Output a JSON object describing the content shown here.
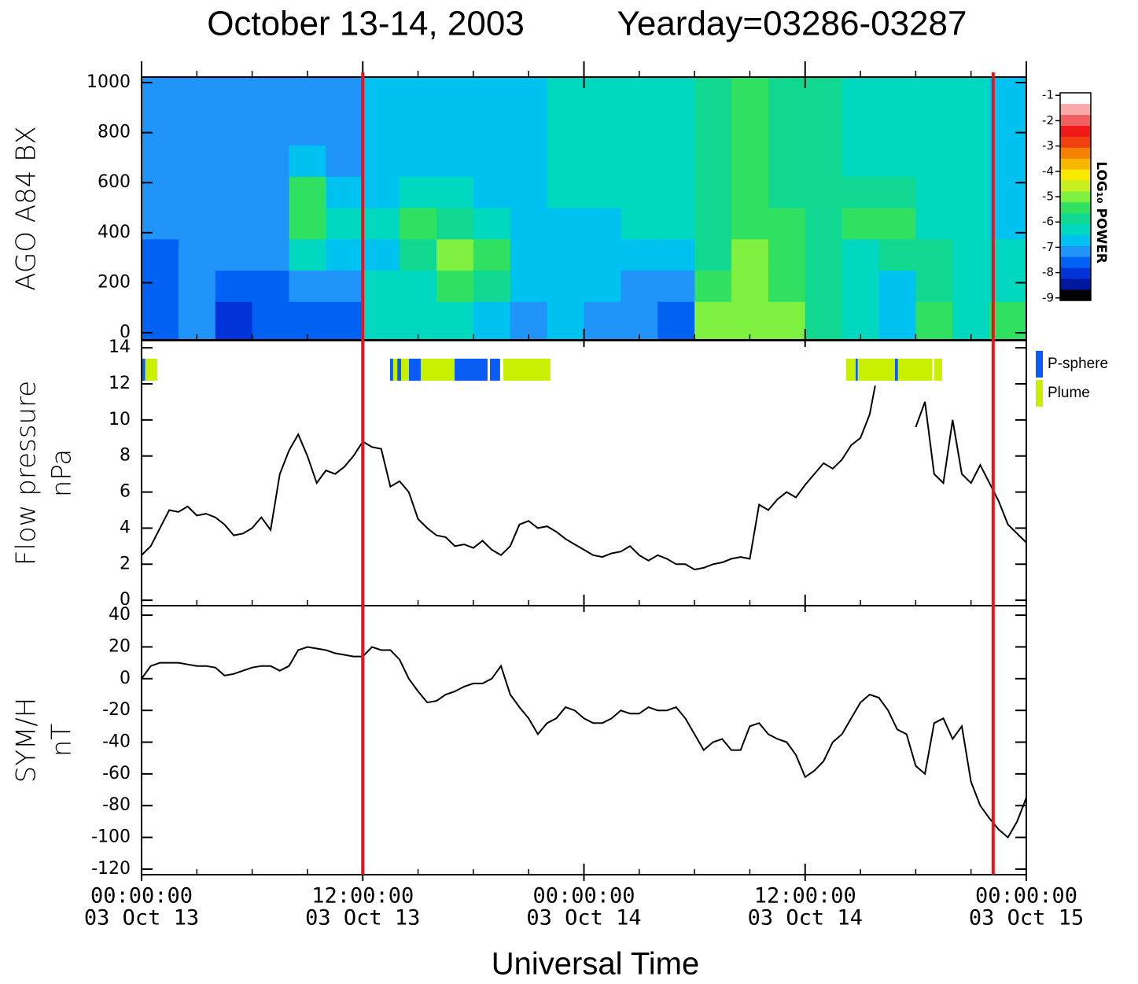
{
  "chart_data": [
    {
      "type": "heatmap",
      "title": "October 13-14, 2003",
      "subtitle": "Yearday=03286-03287",
      "ylabel": [
        "AGO A84  BX"
      ],
      "xlim": [
        0,
        48
      ],
      "ylim": [
        -28,
        1022
      ],
      "yticks": [
        0,
        200,
        400,
        600,
        800,
        1000
      ],
      "x_bins": [
        0,
        2,
        4,
        6,
        8,
        10,
        12,
        14,
        16,
        18,
        20,
        22,
        24,
        26,
        28,
        30,
        32,
        34,
        36,
        38,
        40,
        42,
        44,
        46,
        48
      ],
      "y_bins": [
        -28,
        125,
        250,
        375,
        500,
        625,
        750,
        875,
        1022
      ],
      "z": [
        [
          -7.8,
          -7.5,
          -7.4,
          -7.3,
          -7.3,
          -7.3,
          -7.3,
          -7.3
        ],
        [
          -7.3,
          -7.2,
          -7.2,
          -7.2,
          -7.2,
          -7.2,
          -7.2,
          -7.2
        ],
        [
          -8,
          -7.6,
          -7.3,
          -7.2,
          -7.2,
          -7.2,
          -7.2,
          -7.2
        ],
        [
          -7.8,
          -7.6,
          -7.3,
          -7.2,
          -7.2,
          -7.2,
          -7.2,
          -7.2
        ],
        [
          -7.6,
          -7.3,
          -6.5,
          -5.6,
          -5.6,
          -6.8,
          -7.1,
          -7.2
        ],
        [
          -7.4,
          -7,
          -6.8,
          -6.2,
          -6.8,
          -7,
          -7.1,
          -7.1
        ],
        [
          -6.2,
          -6.5,
          -6.6,
          -6.2,
          -6.6,
          -6.8,
          -6.8,
          -6.8
        ],
        [
          -6.3,
          -6.4,
          -5.8,
          -5.3,
          -6.5,
          -6.6,
          -6.6,
          -6.6
        ],
        [
          -6.5,
          -5.5,
          -5,
          -6,
          -6.5,
          -6.6,
          -6.6,
          -6.6
        ],
        [
          -6.8,
          -5.8,
          -5.6,
          -6.3,
          -6.6,
          -6.6,
          -6.6,
          -6.6
        ],
        [
          -7.2,
          -6.9,
          -6.7,
          -6.6,
          -6.6,
          -6.6,
          -6.6,
          -6.6
        ],
        [
          -6.8,
          -6.8,
          -6.7,
          -6.6,
          -6.5,
          -6.5,
          -6.5,
          -6.5
        ],
        [
          -7.1,
          -6.9,
          -6.8,
          -6.6,
          -6.5,
          -6.5,
          -6.5,
          -6.5
        ],
        [
          -7.2,
          -7,
          -6.8,
          -6.5,
          -6.3,
          -6.3,
          -6.3,
          -6.3
        ],
        [
          -7.4,
          -7.1,
          -6.8,
          -6.4,
          -6.2,
          -6.2,
          -6.2,
          -6.2
        ],
        [
          -5.2,
          -5.4,
          -5.8,
          -5.8,
          -5.8,
          -5.9,
          -5.9,
          -6
        ],
        [
          -4.8,
          -5,
          -5.2,
          -5.3,
          -5.3,
          -5.3,
          -5.3,
          -5.4
        ],
        [
          -5.2,
          -5.3,
          -5.5,
          -5.6,
          -5.7,
          -5.8,
          -5.8,
          -5.8
        ],
        [
          -5.8,
          -6,
          -5.9,
          -5.9,
          -5.9,
          -6,
          -6,
          -6
        ],
        [
          -6.2,
          -6.5,
          -6.2,
          -5.6,
          -6,
          -6.2,
          -6.2,
          -6.2
        ],
        [
          -6.6,
          -6.7,
          -5.8,
          -5.3,
          -6,
          -6.2,
          -6.2,
          -6.2
        ],
        [
          -5.5,
          -5.9,
          -6,
          -6.2,
          -6.3,
          -6.3,
          -6.3,
          -6.3
        ],
        [
          -6.3,
          -6.5,
          -6.5,
          -6.4,
          -6.4,
          -6.4,
          -6.4,
          -6.4
        ],
        [
          -5.5,
          -6.2,
          -6.5,
          -6.6,
          -6.6,
          -6.6,
          -6.6,
          -6.6
        ]
      ],
      "zlim": [
        -9.1,
        -0.9
      ],
      "zticks": [
        -1,
        -2,
        -3,
        -4,
        -5,
        -6,
        -7,
        -8,
        -9
      ],
      "zlabel": "LOG₁₀ POWER",
      "colorscale": [
        "#000000",
        "#0018a0",
        "#0034d8",
        "#0062f2",
        "#2094f8",
        "#00c2f0",
        "#00d8c0",
        "#10d890",
        "#30e060",
        "#80f040",
        "#c8f020",
        "#f8e800",
        "#f8b800",
        "#f88000",
        "#f04010",
        "#f01818",
        "#f06060",
        "#f8a8a8",
        "#ffffff"
      ],
      "markers": [
        12.0,
        46.2
      ],
      "marker_color": "#e8141c"
    },
    {
      "type": "line",
      "ylabel": [
        "Flow pressure",
        "nPa"
      ],
      "color": "#000000",
      "xlim": [
        0,
        48
      ],
      "ylim": [
        -0.3,
        14.4
      ],
      "yticks": [
        0,
        2,
        4,
        6,
        8,
        10,
        12,
        14
      ],
      "x": [
        0,
        0.5,
        1,
        1.5,
        2,
        2.5,
        3,
        3.5,
        4,
        4.5,
        5,
        5.5,
        6,
        6.5,
        7,
        7.5,
        8,
        8.5,
        9,
        9.5,
        10,
        10.5,
        11,
        11.5,
        12,
        12.5,
        13,
        13.5,
        14,
        14.5,
        15,
        15.5,
        16,
        16.5,
        17,
        17.5,
        18,
        18.5,
        19,
        19.5,
        20,
        20.5,
        21,
        21.5,
        22,
        22.5,
        23,
        23.5,
        24,
        24.5,
        25,
        25.5,
        26,
        26.5,
        27,
        27.5,
        28,
        28.5,
        29,
        29.5,
        30,
        30.5,
        31,
        31.5,
        32,
        32.5,
        33,
        33.5,
        34,
        34.5,
        35,
        35.5,
        36,
        36.5,
        37,
        37.5,
        38,
        38.5,
        39,
        39.5,
        39.8,
        40.5,
        42,
        42.5,
        43,
        43.5,
        44,
        44.5,
        45,
        45.5,
        46,
        46.5,
        47,
        47.5,
        48
      ],
      "values": [
        2.5,
        3,
        4,
        5,
        4.9,
        5.2,
        4.7,
        4.8,
        4.6,
        4.2,
        3.6,
        3.7,
        4,
        4.6,
        3.9,
        7,
        8.3,
        9.2,
        8,
        6.5,
        7.2,
        7,
        7.4,
        8,
        8.8,
        8.5,
        8.4,
        6.3,
        6.6,
        6,
        4.5,
        4,
        3.6,
        3.5,
        3,
        3.1,
        2.9,
        3.3,
        2.8,
        2.5,
        3,
        4.2,
        4.4,
        4,
        4.1,
        3.8,
        3.4,
        3.1,
        2.8,
        2.5,
        2.4,
        2.6,
        2.7,
        3,
        2.5,
        2.2,
        2.5,
        2.3,
        2,
        2,
        1.7,
        1.8,
        2,
        2.1,
        2.3,
        2.4,
        2.3,
        5.3,
        5,
        5.6,
        6,
        5.7,
        6.4,
        7,
        7.6,
        7.3,
        7.8,
        8.6,
        9,
        10.3,
        11.9,
        null,
        9.6,
        11,
        7,
        6.5,
        10,
        7,
        6.5,
        7.5,
        6.5,
        5.5,
        4.2,
        3.7,
        3.2
      ],
      "regions": [
        {
          "name": "P-sphere",
          "color": "#0a5cf5",
          "intervals": [
            [
              0,
              0.2
            ],
            [
              13.48,
              13.65
            ],
            [
              13.87,
              14.08
            ],
            [
              14.5,
              15.15
            ],
            [
              16.98,
              18.77
            ],
            [
              18.9,
              19.45
            ],
            [
              38.74,
              38.86
            ],
            [
              40.87,
              41.04
            ]
          ]
        },
        {
          "name": "Plume",
          "color": "#c8f000",
          "intervals": [
            [
              0.2,
              0.85
            ],
            [
              13.65,
              13.87
            ],
            [
              14.08,
              14.5
            ],
            [
              15.15,
              16.98
            ],
            [
              19.62,
              22.18
            ],
            [
              38.23,
              38.74
            ],
            [
              38.86,
              40.87
            ],
            [
              41.04,
              42.88
            ],
            [
              43,
              43.43
            ]
          ]
        }
      ]
    },
    {
      "type": "line",
      "ylabel": [
        "SYM/H",
        "nT"
      ],
      "color": "#000000",
      "xlabel": "Universal Time",
      "xlim": [
        0,
        48
      ],
      "ylim": [
        -123.5,
        46
      ],
      "yticks": [
        -120,
        -100,
        -80,
        -60,
        -40,
        -20,
        0,
        20,
        40
      ],
      "xticks": [
        {
          "value": 0,
          "label": [
            "00:00:00",
            "03 Oct 13"
          ]
        },
        {
          "value": 12,
          "label": [
            "12:00:00",
            "03 Oct 13"
          ]
        },
        {
          "value": 24,
          "label": [
            "00:00:00",
            "03 Oct 14"
          ]
        },
        {
          "value": 36,
          "label": [
            "12:00:00",
            "03 Oct 14"
          ]
        },
        {
          "value": 48,
          "label": [
            "00:00:00",
            "03 Oct 15"
          ]
        }
      ],
      "xminorticks": [
        3,
        6,
        9,
        15,
        18,
        21,
        27,
        30,
        33,
        39,
        42,
        45
      ],
      "x": [
        0,
        0.5,
        1,
        1.5,
        2,
        2.5,
        3,
        3.5,
        4,
        4.5,
        5,
        5.5,
        6,
        6.5,
        7,
        7.5,
        8,
        8.5,
        9,
        9.5,
        10,
        10.5,
        11,
        11.5,
        12,
        12.5,
        13,
        13.5,
        14,
        14.5,
        15,
        15.5,
        16,
        16.5,
        17,
        17.5,
        18,
        18.5,
        19,
        19.5,
        20,
        20.5,
        21,
        21.5,
        22,
        22.5,
        23,
        23.5,
        24,
        24.5,
        25,
        25.5,
        26,
        26.5,
        27,
        27.5,
        28,
        28.5,
        29,
        29.5,
        30,
        30.5,
        31,
        31.5,
        32,
        32.5,
        33,
        33.5,
        34,
        34.5,
        35,
        35.5,
        36,
        36.5,
        37,
        37.5,
        38,
        38.5,
        39,
        39.5,
        40,
        40.5,
        41,
        41.5,
        42,
        42.5,
        43,
        43.5,
        44,
        44.5,
        45,
        45.5,
        46,
        46.5,
        47,
        47.5,
        48
      ],
      "values": [
        0,
        8,
        10,
        10,
        10,
        9,
        8,
        8,
        7,
        2,
        3,
        5,
        7,
        8,
        8,
        5,
        8,
        18,
        20,
        19,
        18,
        16,
        15,
        14,
        14,
        20,
        18,
        18,
        12,
        0,
        -8,
        -15,
        -14,
        -10,
        -8,
        -5,
        -3,
        -3,
        0,
        8,
        -10,
        -18,
        -25,
        -35,
        -28,
        -25,
        -18,
        -20,
        -25,
        -28,
        -28,
        -25,
        -20,
        -22,
        -22,
        -18,
        -20,
        -20,
        -18,
        -25,
        -35,
        -45,
        -40,
        -38,
        -45,
        -45,
        -30,
        -28,
        -35,
        -38,
        -40,
        -48,
        -62,
        -58,
        -52,
        -40,
        -35,
        -25,
        -15,
        -10,
        -12,
        -20,
        -32,
        -35,
        -55,
        -60,
        -28,
        -25,
        -38,
        -30,
        -65,
        -80,
        -88,
        -95,
        -100,
        -90,
        -75
      ]
    }
  ]
}
